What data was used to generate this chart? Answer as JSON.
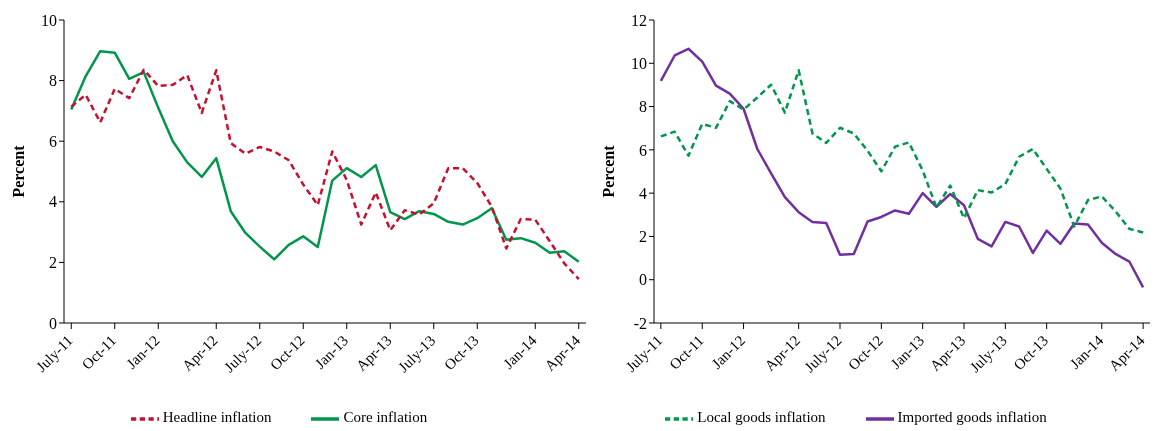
{
  "chart_data": [
    {
      "type": "line",
      "ylabel": "Percent",
      "legend": "bottom",
      "categories": [
        "July-11",
        null,
        null,
        "Oct-11",
        null,
        null,
        "Jan-12",
        null,
        null,
        null,
        "Apr-12",
        null,
        null,
        "July-12",
        null,
        null,
        "Oct-12",
        null,
        null,
        "Jan-13",
        null,
        null,
        "Apr-13",
        null,
        null,
        "July-13",
        null,
        null,
        "Oct-13",
        null,
        null,
        null,
        "Jan-14",
        null,
        null,
        "Apr-14"
      ],
      "series": [
        {
          "name": "Headline inflation",
          "color": "#c8102e",
          "line_style": "dashed",
          "values": [
            7.14,
            7.53,
            6.62,
            7.73,
            7.42,
            8.36,
            7.82,
            7.86,
            8.18,
            6.93,
            8.34,
            5.94,
            5.59,
            5.81,
            5.66,
            5.37,
            4.57,
            3.89,
            5.66,
            4.72,
            3.25,
            4.31,
            3.06,
            3.72,
            3.58,
            3.95,
            5.11,
            5.11,
            4.62,
            3.84,
            2.46,
            3.43,
            3.41,
            2.7,
            1.97,
            1.45
          ]
        },
        {
          "name": "Core inflation",
          "color": "#00964b",
          "line_style": "solid",
          "values": [
            7.05,
            8.15,
            8.97,
            8.92,
            8.06,
            8.28,
            7.1,
            6.0,
            5.3,
            4.82,
            5.44,
            3.69,
            2.98,
            2.52,
            2.1,
            2.58,
            2.86,
            2.51,
            4.7,
            5.11,
            4.82,
            5.21,
            3.66,
            3.43,
            3.69,
            3.6,
            3.34,
            3.25,
            3.46,
            3.79,
            2.75,
            2.8,
            2.65,
            2.32,
            2.37,
            2.02
          ]
        }
      ],
      "ylim": [
        0,
        10
      ],
      "yticks": [
        0,
        2,
        4,
        6,
        8,
        10
      ]
    },
    {
      "type": "line",
      "ylabel": "Percent",
      "legend": "bottom",
      "categories": [
        "July-11",
        null,
        null,
        "Oct-11",
        null,
        null,
        "Jan-12",
        null,
        null,
        null,
        "Apr-12",
        null,
        null,
        "July-12",
        null,
        null,
        "Oct-12",
        null,
        null,
        "Jan-13",
        null,
        null,
        "Apr-13",
        null,
        null,
        "July-13",
        null,
        null,
        "Oct-13",
        null,
        null,
        null,
        "Jan-14",
        null,
        null,
        "Apr-14"
      ],
      "series": [
        {
          "name": "Local goods inflation",
          "color": "#00964b",
          "line_style": "dashed",
          "values": [
            6.62,
            6.84,
            5.73,
            7.2,
            7.02,
            8.25,
            7.86,
            8.42,
            9.01,
            7.72,
            9.68,
            6.76,
            6.32,
            7.02,
            6.76,
            5.96,
            5.01,
            6.15,
            6.34,
            5.05,
            3.34,
            4.35,
            2.84,
            4.14,
            4.03,
            4.42,
            5.68,
            6.04,
            5.12,
            4.21,
            2.46,
            3.68,
            3.85,
            3.16,
            2.35,
            2.18
          ]
        },
        {
          "name": "Imported goods inflation",
          "color": "#7030a0",
          "line_style": "solid",
          "values": [
            9.19,
            10.36,
            10.67,
            10.08,
            8.97,
            8.6,
            7.9,
            6.04,
            4.91,
            3.82,
            3.12,
            2.67,
            2.62,
            1.15,
            1.19,
            2.69,
            2.9,
            3.2,
            3.05,
            4.0,
            3.37,
            3.96,
            3.44,
            1.89,
            1.54,
            2.67,
            2.46,
            1.24,
            2.27,
            1.66,
            2.6,
            2.55,
            1.71,
            1.19,
            0.84,
            -0.35
          ]
        }
      ],
      "ylim": [
        -2,
        12
      ],
      "yticks": [
        -2,
        0,
        2,
        4,
        6,
        8,
        10,
        12
      ]
    }
  ]
}
